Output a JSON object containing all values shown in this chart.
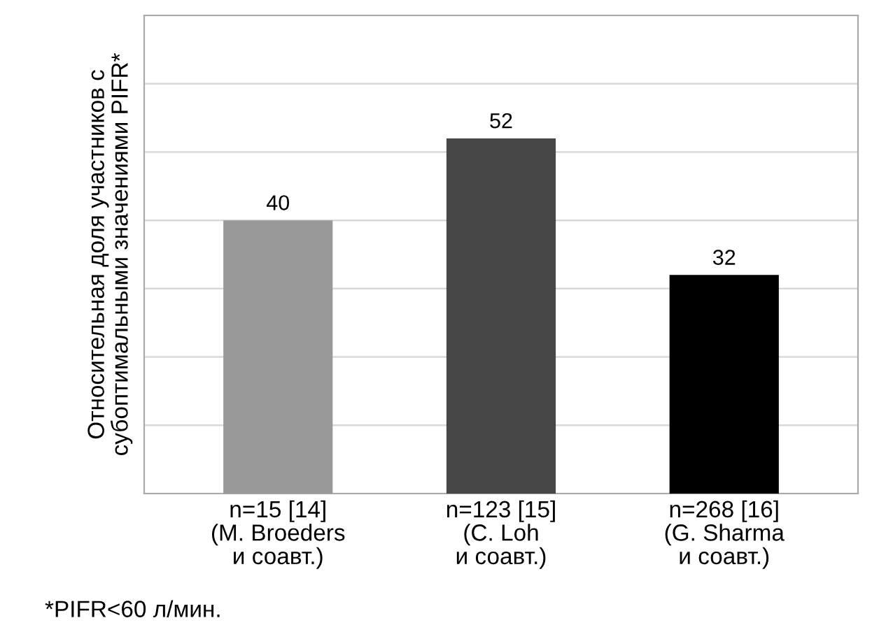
{
  "chart_data": {
    "type": "bar",
    "ylabel": "Относительная доля участников с\nсубоптимальными значениями PIFR*",
    "categories": [
      "n=15 [14]\n(M. Broeders\nи соавт.)",
      "n=123 [15]\n(C. Loh\nи соавт.)",
      "n=268 [16]\n(G. Sharma\nи соавт.)"
    ],
    "values": [
      40,
      52,
      32
    ],
    "colors": [
      "#999999",
      "#474747",
      "#000000"
    ],
    "data_labels": true,
    "ylim": [
      0,
      70
    ],
    "yticks": [
      {
        "value": 0,
        "label": null
      },
      {
        "value": 10,
        "label": null
      },
      {
        "value": 20,
        "label": null
      },
      {
        "value": 30,
        "label": null
      },
      {
        "value": 40,
        "label": null
      },
      {
        "value": 50,
        "label": null
      },
      {
        "value": 60,
        "label": null
      },
      {
        "value": 70,
        "label": null
      }
    ],
    "tick_labels": "x",
    "grid": "y",
    "legend": false,
    "annotations": [
      "*PIFR<60 л/мин."
    ]
  }
}
